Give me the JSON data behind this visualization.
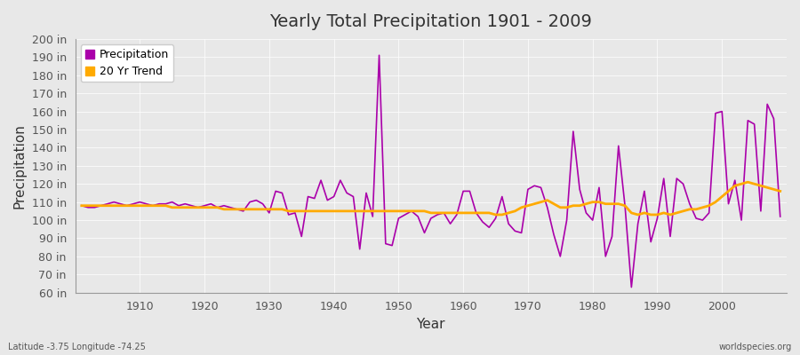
{
  "title": "Yearly Total Precipitation 1901 - 2009",
  "xlabel": "Year",
  "ylabel": "Precipitation",
  "subtitle_left": "Latitude -3.75 Longitude -74.25",
  "subtitle_right": "worldspecies.org",
  "ylim": [
    60,
    200
  ],
  "ytick_step": 10,
  "years": [
    1901,
    1902,
    1903,
    1904,
    1905,
    1906,
    1907,
    1908,
    1909,
    1910,
    1911,
    1912,
    1913,
    1914,
    1915,
    1916,
    1917,
    1918,
    1919,
    1920,
    1921,
    1922,
    1923,
    1924,
    1925,
    1926,
    1927,
    1928,
    1929,
    1930,
    1931,
    1932,
    1933,
    1934,
    1935,
    1936,
    1937,
    1938,
    1939,
    1940,
    1941,
    1942,
    1943,
    1944,
    1945,
    1946,
    1947,
    1948,
    1949,
    1950,
    1951,
    1952,
    1953,
    1954,
    1955,
    1956,
    1957,
    1958,
    1959,
    1960,
    1961,
    1962,
    1963,
    1964,
    1965,
    1966,
    1967,
    1968,
    1969,
    1970,
    1971,
    1972,
    1973,
    1974,
    1975,
    1976,
    1977,
    1978,
    1979,
    1980,
    1981,
    1982,
    1983,
    1984,
    1985,
    1986,
    1987,
    1988,
    1989,
    1990,
    1991,
    1992,
    1993,
    1994,
    1995,
    1996,
    1997,
    1998,
    1999,
    2000,
    2001,
    2002,
    2003,
    2004,
    2005,
    2006,
    2007,
    2008,
    2009
  ],
  "precip": [
    108,
    107,
    107,
    108,
    109,
    110,
    109,
    108,
    109,
    110,
    109,
    108,
    109,
    109,
    110,
    108,
    109,
    108,
    107,
    108,
    109,
    107,
    108,
    107,
    106,
    105,
    110,
    111,
    109,
    104,
    116,
    115,
    103,
    104,
    91,
    113,
    112,
    122,
    111,
    113,
    122,
    115,
    113,
    84,
    115,
    102,
    191,
    87,
    86,
    101,
    103,
    105,
    102,
    93,
    101,
    103,
    104,
    98,
    103,
    116,
    116,
    104,
    99,
    96,
    101,
    113,
    98,
    94,
    93,
    117,
    119,
    118,
    107,
    92,
    80,
    100,
    149,
    117,
    104,
    100,
    118,
    80,
    91,
    141,
    108,
    63,
    98,
    116,
    88,
    101,
    123,
    91,
    123,
    120,
    109,
    101,
    100,
    104,
    159,
    160,
    109,
    122,
    100,
    155,
    153,
    105,
    164,
    156,
    102
  ],
  "trend": [
    108,
    108,
    108,
    108,
    108,
    108,
    108,
    108,
    108,
    108,
    108,
    108,
    108,
    108,
    107,
    107,
    107,
    107,
    107,
    107,
    107,
    107,
    106,
    106,
    106,
    106,
    106,
    106,
    106,
    106,
    106,
    106,
    105,
    105,
    105,
    105,
    105,
    105,
    105,
    105,
    105,
    105,
    105,
    105,
    105,
    105,
    105,
    105,
    105,
    105,
    105,
    105,
    105,
    105,
    104,
    104,
    104,
    104,
    104,
    104,
    104,
    104,
    104,
    104,
    103,
    103,
    104,
    105,
    107,
    108,
    109,
    110,
    111,
    109,
    107,
    107,
    108,
    108,
    109,
    110,
    110,
    109,
    109,
    109,
    108,
    104,
    103,
    104,
    103,
    103,
    104,
    103,
    104,
    105,
    106,
    106,
    107,
    108,
    110,
    113,
    116,
    119,
    120,
    121,
    120,
    119,
    118,
    117,
    116
  ],
  "precip_color": "#aa00aa",
  "trend_color": "#ffaa00",
  "bg_color": "#e8e8e8",
  "grid_color": "#ffffff",
  "legend_label_precip": "Precipitation",
  "legend_label_trend": "20 Yr Trend"
}
